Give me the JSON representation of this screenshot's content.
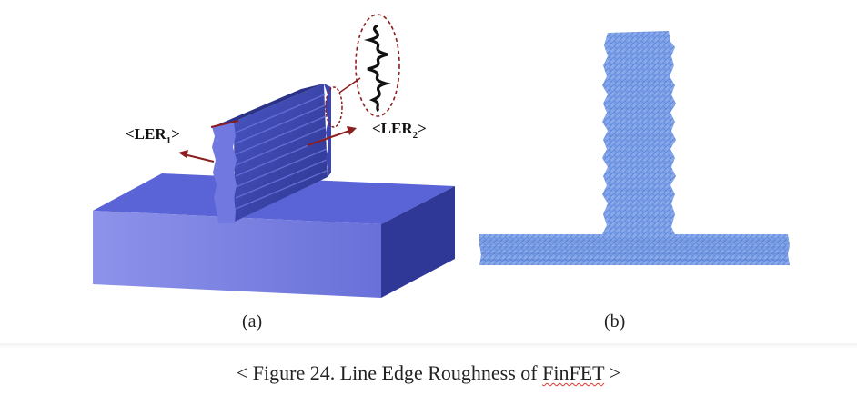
{
  "figure": {
    "panel_a": {
      "label": "(a)",
      "ler1_main": "<LER",
      "ler1_sub": "1",
      "ler1_close": ">",
      "ler2_main": "<LER",
      "ler2_sub": "2",
      "ler2_close": ">"
    },
    "panel_b": {
      "label": "(b)"
    }
  },
  "caption": {
    "prefix": "< Figure 24. Line Edge Roughness of ",
    "flagged_word": "FinFET",
    "suffix": " >"
  },
  "colors": {
    "substrate_top": "#5a64d6",
    "substrate_front": "#7c83e6",
    "substrate_side": "#2f3797",
    "fin_dark": "#343e9e",
    "arrow": "#8b1e1e",
    "mesh": "#6f95e3",
    "spellcheck": "#e0342d"
  }
}
